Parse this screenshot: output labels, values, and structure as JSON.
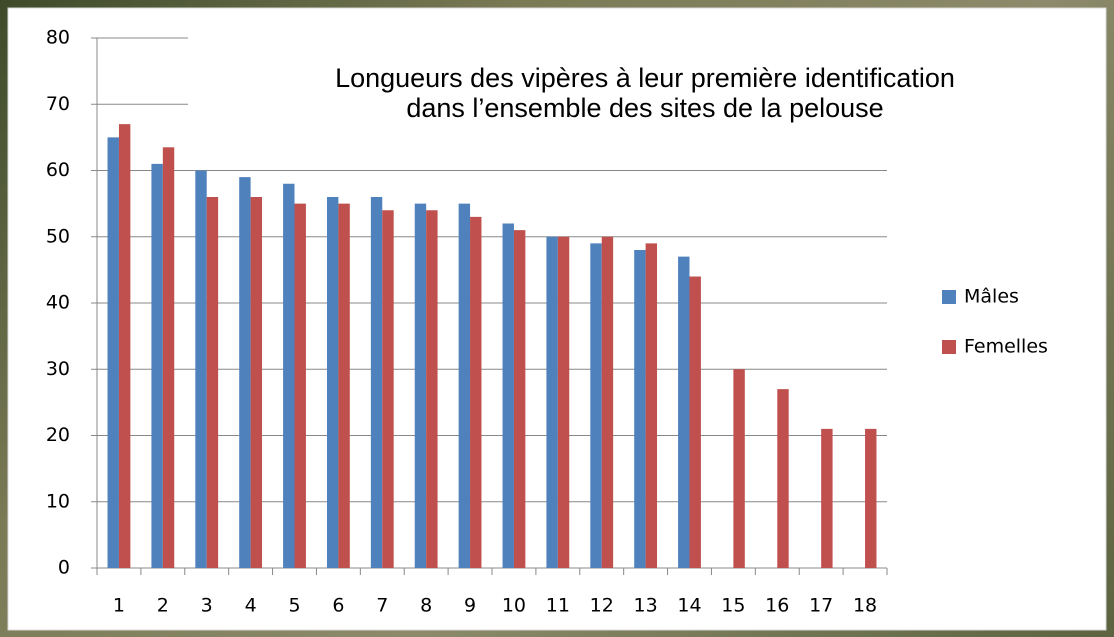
{
  "chart_data": {
    "type": "bar",
    "title": [
      "Longueurs des vipères à leur première identification",
      "dans l’ensemble des sites de la pelouse"
    ],
    "categories": [
      1,
      2,
      3,
      4,
      5,
      6,
      7,
      8,
      9,
      10,
      11,
      12,
      13,
      14,
      15,
      16,
      17,
      18
    ],
    "series": [
      {
        "name": "Mâles",
        "color": "#4f81bd",
        "values": [
          65,
          61,
          60,
          59,
          58,
          56,
          56,
          55,
          55,
          52,
          50,
          49,
          48,
          47,
          null,
          null,
          null,
          null
        ]
      },
      {
        "name": "Femelles",
        "color": "#c0504d",
        "values": [
          67,
          63.5,
          56,
          56,
          55,
          55,
          54,
          54,
          53,
          51,
          50,
          50,
          49,
          44,
          30,
          27,
          21,
          21
        ]
      }
    ],
    "ylim": [
      0,
      80
    ],
    "yticks": [
      0,
      10,
      20,
      30,
      40,
      50,
      60,
      70,
      80
    ],
    "grid": true,
    "legend": "right"
  }
}
